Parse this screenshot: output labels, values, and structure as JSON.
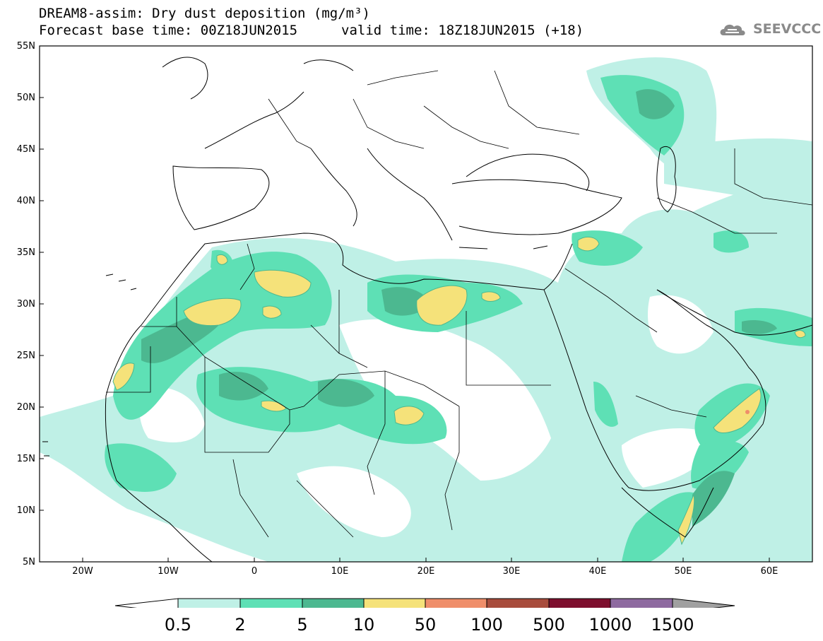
{
  "header": {
    "title_line1": "DREAM8-assim: Dry dust deposition (mg/m³)",
    "title_line2": "Forecast base time: 00Z18JUN2015",
    "valid_time": "valid time: 18Z18JUN2015 (+18)",
    "logo_text": "SEEVCCC"
  },
  "axes": {
    "lat_labels": [
      "55N",
      "50N",
      "45N",
      "40N",
      "35N",
      "30N",
      "25N",
      "20N",
      "15N",
      "10N",
      "5N"
    ],
    "lon_labels": [
      "20W",
      "10W",
      "0",
      "10E",
      "20E",
      "30E",
      "40E",
      "50E",
      "60E"
    ]
  },
  "colorbar": {
    "levels": [
      "0.5",
      "2",
      "5",
      "10",
      "50",
      "100",
      "500",
      "1000",
      "1500"
    ],
    "colors": [
      "#ffffff",
      "#bff0e6",
      "#5ee0b5",
      "#4cb890",
      "#f5e27a",
      "#ef8e6a",
      "#a84c3c",
      "#7e0f2e",
      "#8e6aa0",
      "#a0a0a0"
    ]
  },
  "map": {
    "land_outline": "#000000",
    "region": "North Africa, Europe and Middle East, 25W–65E, 5N–55N"
  }
}
